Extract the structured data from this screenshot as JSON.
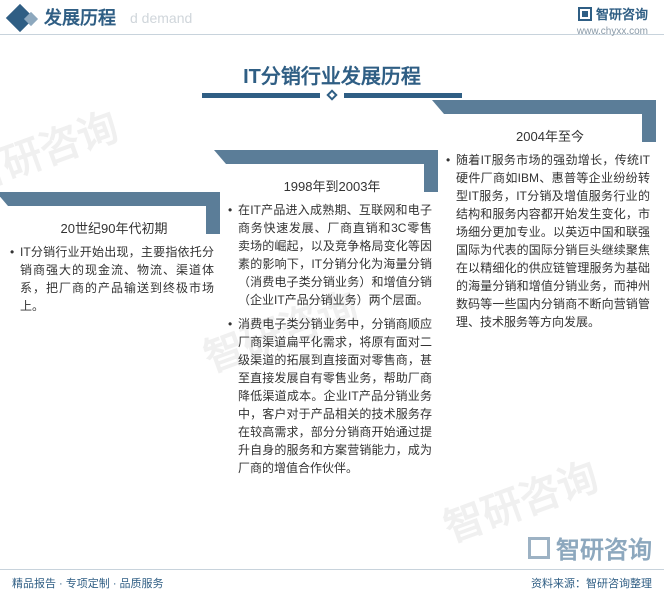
{
  "header": {
    "title": "发展历程",
    "subtitle_ghost": "d demand"
  },
  "brand": {
    "name": "智研咨询",
    "url": "www.chyxx.com"
  },
  "main_title": "IT分销行业发展历程",
  "columns": [
    {
      "period": "20世纪90年代初期",
      "paras": [
        "IT分销行业开始出现，主要指依托分销商强大的现金流、物流、渠道体系，把厂商的产品输送到终极市场上。"
      ]
    },
    {
      "period": "1998年到2003年",
      "paras": [
        "在IT产品进入成熟期、互联网和电子商务快速发展、厂商直销和3C零售卖场的崛起，以及竞争格局变化等因素的影响下，IT分销分化为海量分销（消费电子类分销业务）和增值分销（企业IT产品分销业务）两个层面。",
        "消费电子类分销业务中，分销商顺应厂商渠道扁平化需求，将原有面对二级渠道的拓展到直接面对零售商，甚至直接发展自有零售业务，帮助厂商降低渠道成本。企业IT产品分销业务中，客户对于产品相关的技术服务存在较高需求，部分分销商开始通过提升自身的服务和方案营销能力，成为厂商的增值合作伙伴。"
      ]
    },
    {
      "period": "2004年至今",
      "paras": [
        "随着IT服务市场的强劲增长，传统IT硬件厂商如IBM、惠普等企业纷纷转型IT服务，IT分销及增值服务行业的结构和服务内容都开始发生变化，市场细分更加专业。以英迈中国和联强国际为代表的国际分销巨头继续聚焦在以精细化的供应链管理服务为基础的海量分销和增值分销业务，而神州数码等一些国内分销商不断向营销管理、技术服务等方向发展。"
      ]
    }
  ],
  "footer": {
    "left": "精品报告 · 专项定制 · 品质服务",
    "right": "资料来源：智研咨询整理"
  },
  "watermark": "智研咨询",
  "colors": {
    "primary": "#2f5e84",
    "bracket": "#5b7d98",
    "line": "#c8d3dc",
    "ghost": "#d0d6db"
  }
}
